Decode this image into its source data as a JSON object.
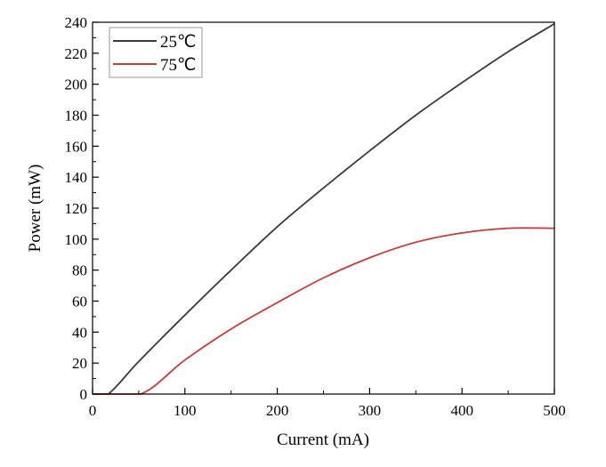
{
  "chart_data": {
    "type": "line",
    "title": "",
    "xlabel": "Current (mA)",
    "ylabel": "Power (mW)",
    "xlim": [
      0,
      500
    ],
    "ylim": [
      0,
      240
    ],
    "xticks": [
      0,
      100,
      200,
      300,
      400,
      500
    ],
    "yticks": [
      0,
      20,
      40,
      60,
      80,
      100,
      120,
      140,
      160,
      180,
      200,
      220,
      240
    ],
    "grid": false,
    "legend_position": "top-left",
    "series": [
      {
        "name": "25℃",
        "color": "#3a3a3a",
        "x": [
          0,
          17,
          50,
          100,
          150,
          200,
          250,
          300,
          350,
          400,
          450,
          500
        ],
        "y": [
          0,
          0,
          21,
          51,
          80,
          108,
          133,
          157,
          180,
          201,
          221,
          239
        ]
      },
      {
        "name": "75℃",
        "color": "#c8383a",
        "x": [
          0,
          52,
          100,
          150,
          200,
          250,
          300,
          350,
          400,
          450,
          500
        ],
        "y": [
          0,
          0,
          22,
          42,
          59,
          75,
          88,
          98,
          104,
          107,
          107
        ]
      }
    ]
  }
}
